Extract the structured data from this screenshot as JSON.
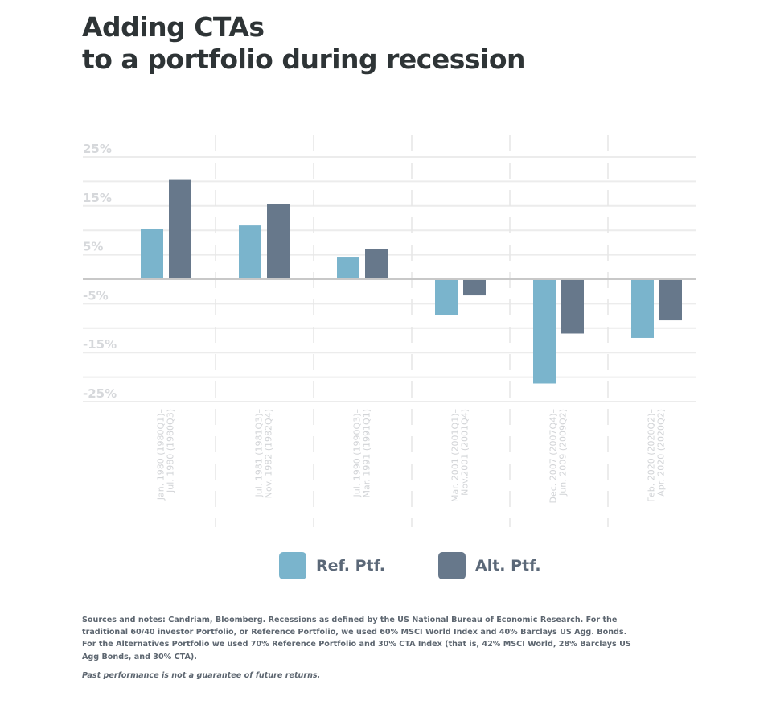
{
  "header": {
    "title_line1": "Adding CTAs",
    "title_line2": "to a portfolio during recession"
  },
  "colors": {
    "ref": "#7ab4cc",
    "alt": "#67788b",
    "grid": "#ececec",
    "zero_line": "#c8c8c8"
  },
  "chart_data": {
    "type": "bar",
    "title": "Adding CTAs to a portfolio during recession",
    "xlabel": "",
    "ylabel": "",
    "ylim": [
      -25,
      25
    ],
    "yticks": [
      25,
      20,
      15,
      10,
      5,
      0,
      -5,
      -10,
      -15,
      -20,
      -25
    ],
    "ytick_labels": [
      {
        "value": 25,
        "label": "25%"
      },
      {
        "value": 15,
        "label": "15%"
      },
      {
        "value": 5,
        "label": "5%"
      },
      {
        "value": -5,
        "label": "-5%"
      },
      {
        "value": -15,
        "label": "-15%"
      },
      {
        "value": -25,
        "label": "-25%"
      }
    ],
    "grid": true,
    "legend_position": "bottom-center",
    "categories": [
      [
        "Jan. 1980 (1980Q1)–",
        "Jul. 1980 (1980Q3)"
      ],
      [
        "Jul. 1981 (1981Q3)–",
        "Nov. 1982 (1982Q4)"
      ],
      [
        "Jul. 1990 (1990Q3)–",
        "Mar. 1991 (1991Q1)"
      ],
      [
        "Mar. 2001 (2001Q1)–",
        "Nov.2001 (2001Q4)"
      ],
      [
        "Dec. 2007 (2007Q4)–",
        "Jun. 2009 (2009Q2)"
      ],
      [
        "Feb. 2020 (2020Q2)–",
        "Apr. 2020 (2020Q2)"
      ]
    ],
    "series": [
      {
        "name": "Ref. Ptf.",
        "key": "ref",
        "values": [
          10.2,
          11.0,
          4.6,
          -7.4,
          -21.3,
          -12.0
        ]
      },
      {
        "name": "Alt. Ptf.",
        "key": "alt",
        "values": [
          20.3,
          15.3,
          6.1,
          -3.3,
          -11.1,
          -8.4
        ]
      }
    ]
  },
  "legend": {
    "items": [
      {
        "label": "Ref. Ptf.",
        "key": "ref"
      },
      {
        "label": "Alt. Ptf.",
        "key": "alt"
      }
    ]
  },
  "notes": {
    "sources": "Sources and notes: Candriam, Bloomberg. Recessions as defined by the US National Bureau of Economic Research. For the traditional 60/40 investor Portfolio, or Reference Portfolio, we used 60% MSCI World Index and 40% Barclays US Agg. Bonds. For the Alternatives Portfolio we used 70% Reference Portfolio and 30% CTA Index (that is, 42% MSCI World, 28% Barclays US Agg Bonds, and 30% CTA).",
    "disclaimer": "Past performance is not a guarantee of future returns."
  }
}
